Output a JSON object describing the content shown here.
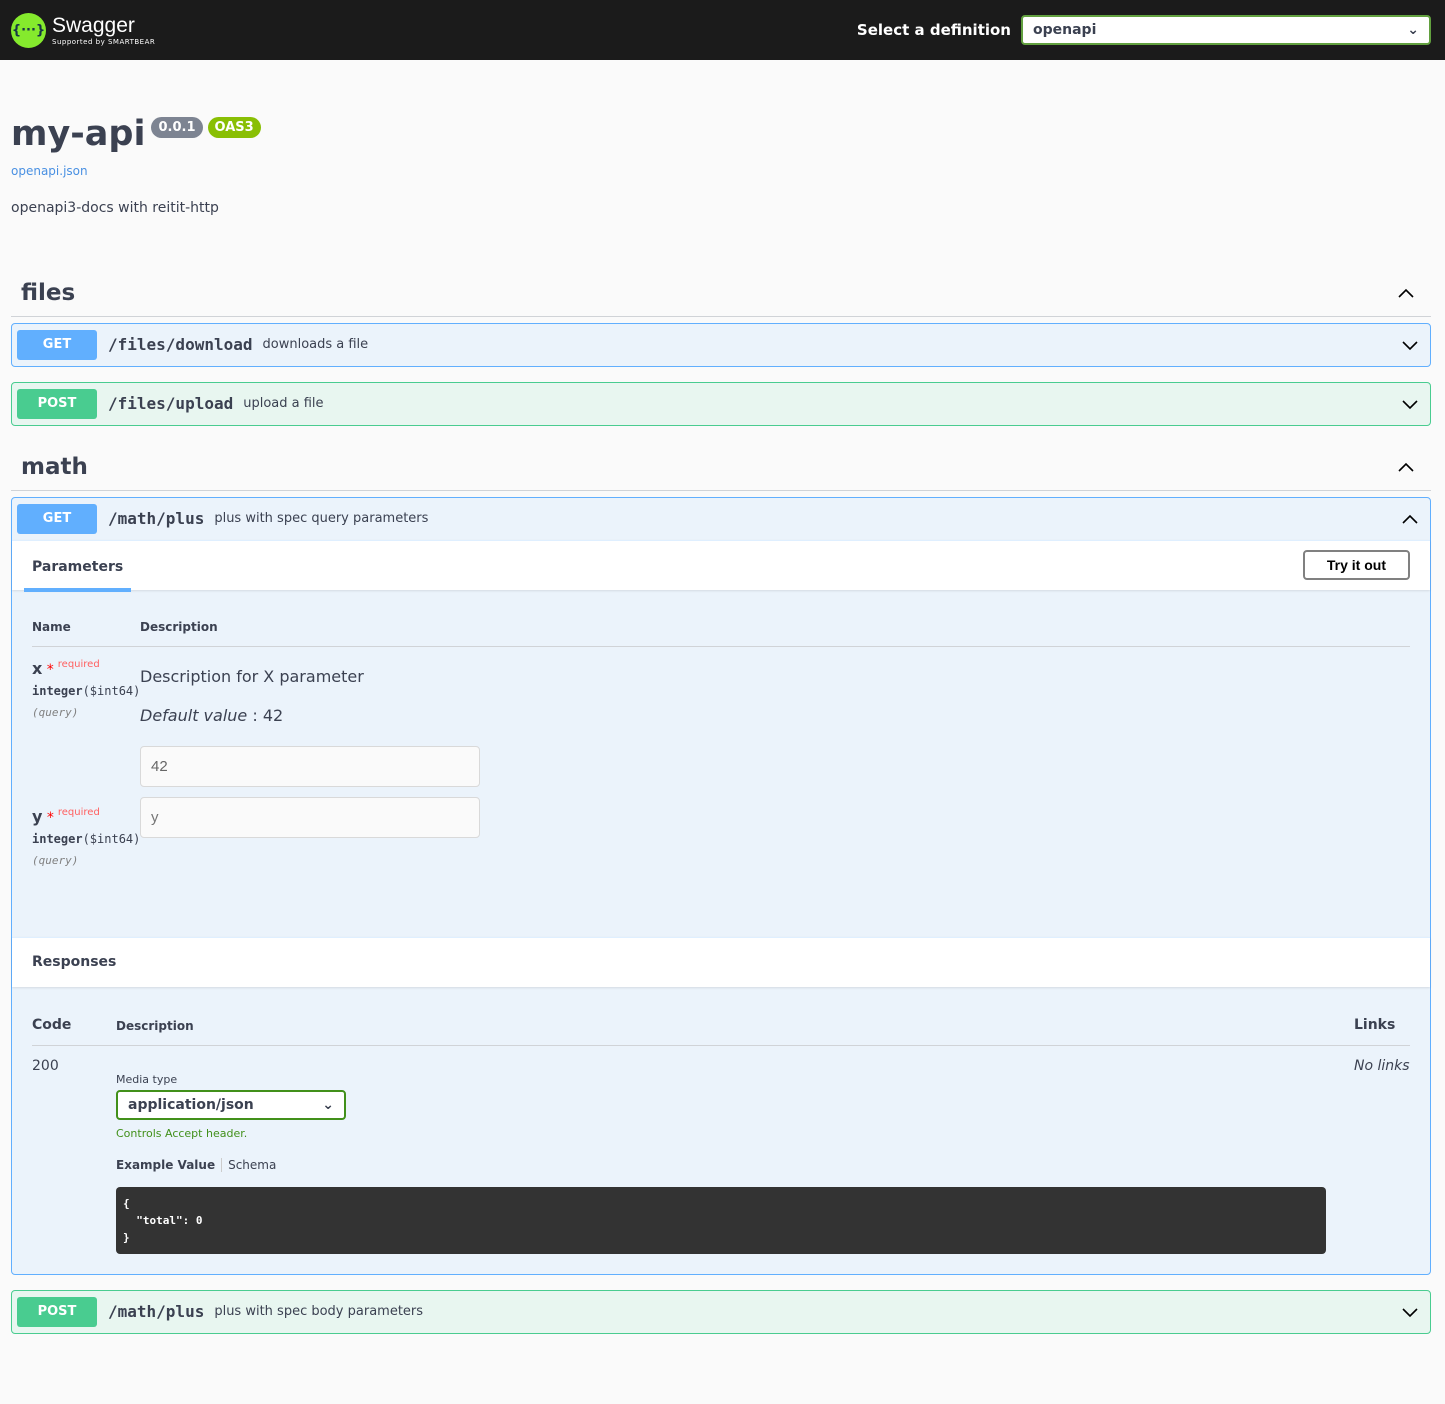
{
  "topbar": {
    "logo_name": "Swagger",
    "logo_sub": "Supported by SMARTBEAR",
    "logo_icon": "{···}",
    "definition_label": "Select a definition",
    "definition_value": "openapi"
  },
  "info": {
    "title": "my-api",
    "version": "0.0.1",
    "oas": "OAS3",
    "spec_link": "openapi.json",
    "description": "openapi3-docs with reitit-http"
  },
  "colors": {
    "get": "#61affe",
    "post": "#49cc90",
    "accent_green": "#85ea2d",
    "oas": "#89bf04",
    "version": "#7d8492"
  },
  "tags": [
    {
      "name": "files",
      "operations": [
        {
          "method": "GET",
          "path": "/files/download",
          "summary": "downloads a file"
        },
        {
          "method": "POST",
          "path": "/files/upload",
          "summary": "upload a file"
        }
      ]
    },
    {
      "name": "math",
      "operations": [
        {
          "method": "GET",
          "path": "/math/plus",
          "summary": "plus with spec query parameters"
        },
        {
          "method": "POST",
          "path": "/math/plus",
          "summary": "plus with spec body parameters"
        }
      ]
    }
  ],
  "expanded": {
    "tab": "Parameters",
    "try_label": "Try it out",
    "param_headers": [
      "Name",
      "Description"
    ],
    "params": [
      {
        "name": "x",
        "star": "*",
        "required": "required",
        "type": "integer",
        "format": "($int64)",
        "in": "(query)",
        "description": "Description for X parameter",
        "default_label": "Default value",
        "default_value": ": 42",
        "value": "42",
        "placeholder": "x"
      },
      {
        "name": "y",
        "star": "*",
        "required": "required",
        "type": "integer",
        "format": "($int64)",
        "in": "(query)",
        "value": "",
        "placeholder": "y"
      }
    ],
    "responses_title": "Responses",
    "resp_headers": {
      "code": "Code",
      "description": "Description",
      "links": "Links"
    },
    "response": {
      "code": "200",
      "media_label": "Media type",
      "media_value": "application/json",
      "controls": "Controls Accept header.",
      "example_tab": "Example Value",
      "schema_tab": "Schema",
      "links": "No links",
      "example": "{\n  \"total\": 0\n}"
    }
  }
}
